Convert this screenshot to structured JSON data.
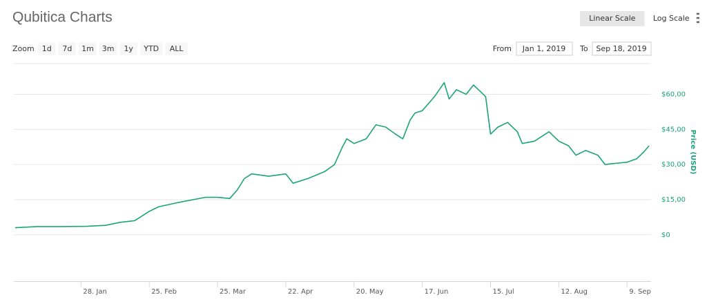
{
  "chart_data": {
    "type": "line",
    "title": "Qubitica Charts",
    "zoom_label": "Zoom",
    "zoom_buttons": [
      "1d",
      "7d",
      "1m",
      "3m",
      "1y",
      "YTD",
      "ALL"
    ],
    "scale_buttons": [
      "Linear Scale",
      "Log Scale"
    ],
    "selected_scale": 0,
    "range": {
      "from_label": "From",
      "from": "Jan 1, 2019",
      "to_label": "To",
      "to": "Sep 18, 2019"
    },
    "y_label": "Price (USD)",
    "color": "#1aa37a",
    "x": [
      "2019-01-01",
      "2019-01-10",
      "2019-01-20",
      "2019-01-30",
      "2019-02-07",
      "2019-02-13",
      "2019-02-19",
      "2019-02-25",
      "2019-03-01",
      "2019-03-10",
      "2019-03-20",
      "2019-03-25",
      "2019-03-30",
      "2019-04-02",
      "2019-04-05",
      "2019-04-08",
      "2019-04-15",
      "2019-04-22",
      "2019-04-25",
      "2019-05-01",
      "2019-05-08",
      "2019-05-12",
      "2019-05-15",
      "2019-05-17",
      "2019-05-20",
      "2019-05-25",
      "2019-05-29",
      "2019-06-02",
      "2019-06-06",
      "2019-06-09",
      "2019-06-12",
      "2019-06-14",
      "2019-06-17",
      "2019-06-22",
      "2019-06-26",
      "2019-06-28",
      "2019-07-01",
      "2019-07-05",
      "2019-07-08",
      "2019-07-11",
      "2019-07-13",
      "2019-07-15",
      "2019-07-18",
      "2019-07-22",
      "2019-07-26",
      "2019-07-28",
      "2019-08-02",
      "2019-08-08",
      "2019-08-12",
      "2019-08-16",
      "2019-08-19",
      "2019-08-23",
      "2019-08-28",
      "2019-08-31",
      "2019-09-04",
      "2019-09-09",
      "2019-09-13",
      "2019-09-16",
      "2019-09-18"
    ],
    "values": [
      3.0,
      3.5,
      3.5,
      3.6,
      4.0,
      5.3,
      6.0,
      10,
      12,
      14,
      16,
      16,
      15.5,
      19,
      24,
      26,
      25,
      26,
      22,
      24,
      27,
      30,
      37,
      41,
      39,
      41,
      47,
      46,
      43,
      41,
      49,
      52,
      53,
      59,
      65,
      58,
      62,
      60,
      64,
      61,
      59,
      43,
      46,
      48,
      44,
      39,
      40,
      44,
      40,
      38,
      34,
      36,
      34,
      30,
      30.5,
      31,
      32.5,
      35.5,
      38
    ],
    "xlim": [
      "2019-01-01",
      "2019-09-18"
    ],
    "xticks": [
      {
        "value": "2019-01-28",
        "label": "28. Jan"
      },
      {
        "value": "2019-02-25",
        "label": "25. Feb"
      },
      {
        "value": "2019-03-25",
        "label": "25. Mar"
      },
      {
        "value": "2019-04-22",
        "label": "22. Apr"
      },
      {
        "value": "2019-05-20",
        "label": "20. May"
      },
      {
        "value": "2019-06-17",
        "label": "17. Jun"
      },
      {
        "value": "2019-07-15",
        "label": "15. Jul"
      },
      {
        "value": "2019-08-12",
        "label": "12. Aug"
      },
      {
        "value": "2019-09-09",
        "label": "9. Sep"
      }
    ],
    "ylim": [
      -20,
      73
    ],
    "yticks": [
      {
        "value": 0,
        "label": "$0"
      },
      {
        "value": 15,
        "label": "$15,00"
      },
      {
        "value": 30,
        "label": "$30,00"
      },
      {
        "value": 45,
        "label": "$45,00"
      },
      {
        "value": 60,
        "label": "$60,00"
      }
    ],
    "grid": true
  }
}
